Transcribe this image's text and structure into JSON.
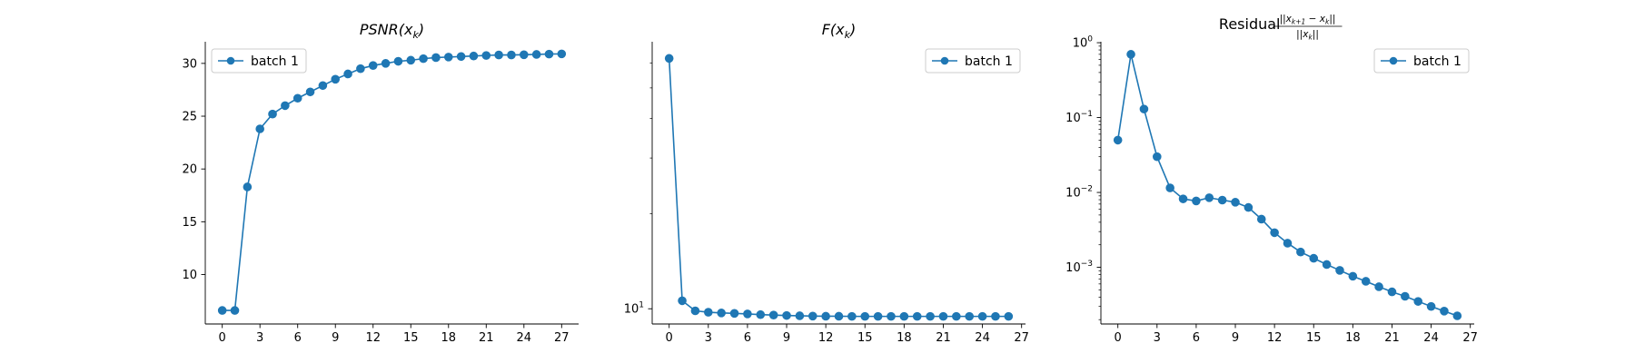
{
  "chart_data": [
    {
      "type": "line",
      "title": "PSNR(x_k)",
      "title_parts": {
        "main": "PSNR(x",
        "sub": "k",
        "tail": ")"
      },
      "xlabel": "",
      "ylabel": "",
      "xlim": [
        -1.35,
        28.35
      ],
      "ylim": [
        5.32,
        32.05
      ],
      "yscale": "linear",
      "xticks": [
        0,
        3,
        6,
        9,
        12,
        15,
        18,
        21,
        24,
        27
      ],
      "xtick_labels": [
        "0",
        "3",
        "6",
        "9",
        "12",
        "15",
        "18",
        "21",
        "24",
        "27"
      ],
      "yticks": [
        10,
        15,
        20,
        25,
        30
      ],
      "ytick_labels": [
        "10",
        "15",
        "20",
        "25",
        "30"
      ],
      "legend_position": "upper left",
      "grid": false,
      "series": [
        {
          "name": "batch 1",
          "color": "#1f77b4",
          "marker": "circle",
          "x": [
            0,
            1,
            2,
            3,
            4,
            5,
            6,
            7,
            8,
            9,
            10,
            11,
            12,
            13,
            14,
            15,
            16,
            17,
            18,
            19,
            20,
            21,
            22,
            23,
            24,
            25,
            26,
            27
          ],
          "values": [
            6.6,
            6.6,
            18.3,
            23.8,
            25.2,
            26.0,
            26.7,
            27.3,
            27.9,
            28.5,
            29.0,
            29.5,
            29.8,
            30.0,
            30.2,
            30.3,
            30.45,
            30.55,
            30.6,
            30.65,
            30.7,
            30.75,
            30.8,
            30.8,
            30.82,
            30.85,
            30.88,
            30.9
          ]
        }
      ]
    },
    {
      "type": "line",
      "title": "F(x_k)",
      "title_parts": {
        "main": "F(x",
        "sub": "k",
        "tail": ")"
      },
      "xlabel": "",
      "ylabel": "",
      "xlim": [
        -1.3,
        27.3
      ],
      "ylim": [
        8.95,
        70
      ],
      "yscale": "log",
      "xticks": [
        0,
        3,
        6,
        9,
        12,
        15,
        18,
        21,
        24,
        27
      ],
      "xtick_labels": [
        "0",
        "3",
        "6",
        "9",
        "12",
        "15",
        "18",
        "21",
        "24",
        "27"
      ],
      "ytick_major": {
        "value": 10,
        "base": "10",
        "exp": "1"
      },
      "yticks_minor": [
        20,
        30,
        40,
        50,
        60
      ],
      "legend_position": "upper right",
      "grid": false,
      "series": [
        {
          "name": "batch 1",
          "color": "#1f77b4",
          "marker": "circle",
          "x": [
            0,
            1,
            2,
            3,
            4,
            5,
            6,
            7,
            8,
            9,
            10,
            11,
            12,
            13,
            14,
            15,
            16,
            17,
            18,
            19,
            20,
            21,
            22,
            23,
            24,
            25,
            26
          ],
          "values": [
            62,
            10.6,
            9.85,
            9.75,
            9.7,
            9.67,
            9.63,
            9.58,
            9.55,
            9.52,
            9.5,
            9.48,
            9.47,
            9.47,
            9.46,
            9.46,
            9.46,
            9.46,
            9.46,
            9.46,
            9.46,
            9.46,
            9.46,
            9.46,
            9.46,
            9.46,
            9.46
          ]
        }
      ]
    },
    {
      "type": "line",
      "title": "Residual ||x_{k+1} - x_k|| / ||x_k||",
      "title_parts": {
        "prefix": "Residual",
        "num_a": "||x",
        "num_sub_a": "k+1",
        "num_mid": " − x",
        "num_sub_b": "k",
        "num_tail": "||",
        "den_a": "||x",
        "den_sub": "k",
        "den_tail": "||"
      },
      "xlabel": "",
      "ylabel": "",
      "xlim": [
        -1.3,
        27.3
      ],
      "ylim": [
        0.000175,
        1.03
      ],
      "yscale": "log",
      "xticks": [
        0,
        3,
        6,
        9,
        12,
        15,
        18,
        21,
        24,
        27
      ],
      "xtick_labels": [
        "0",
        "3",
        "6",
        "9",
        "12",
        "15",
        "18",
        "21",
        "24",
        "27"
      ],
      "yticks_major": [
        {
          "value": 1,
          "base": "10",
          "exp": "0"
        },
        {
          "value": 0.1,
          "base": "10",
          "exp": "−1"
        },
        {
          "value": 0.01,
          "base": "10",
          "exp": "−2"
        },
        {
          "value": 0.001,
          "base": "10",
          "exp": "−3"
        }
      ],
      "legend_position": "upper right",
      "grid": false,
      "series": [
        {
          "name": "batch 1",
          "color": "#1f77b4",
          "marker": "circle",
          "x": [
            0,
            1,
            2,
            3,
            4,
            5,
            6,
            7,
            8,
            9,
            10,
            11,
            12,
            13,
            14,
            15,
            16,
            17,
            18,
            19,
            20,
            21,
            22,
            23,
            24,
            25,
            26
          ],
          "values": [
            0.05,
            0.7,
            0.13,
            0.03,
            0.0115,
            0.0082,
            0.0077,
            0.0085,
            0.0079,
            0.0074,
            0.0063,
            0.0044,
            0.0029,
            0.0021,
            0.0016,
            0.00132,
            0.00109,
            0.00091,
            0.00076,
            0.00065,
            0.00055,
            0.00047,
            0.00041,
            0.00035,
            0.0003,
            0.00026,
            0.000225
          ]
        }
      ]
    }
  ]
}
